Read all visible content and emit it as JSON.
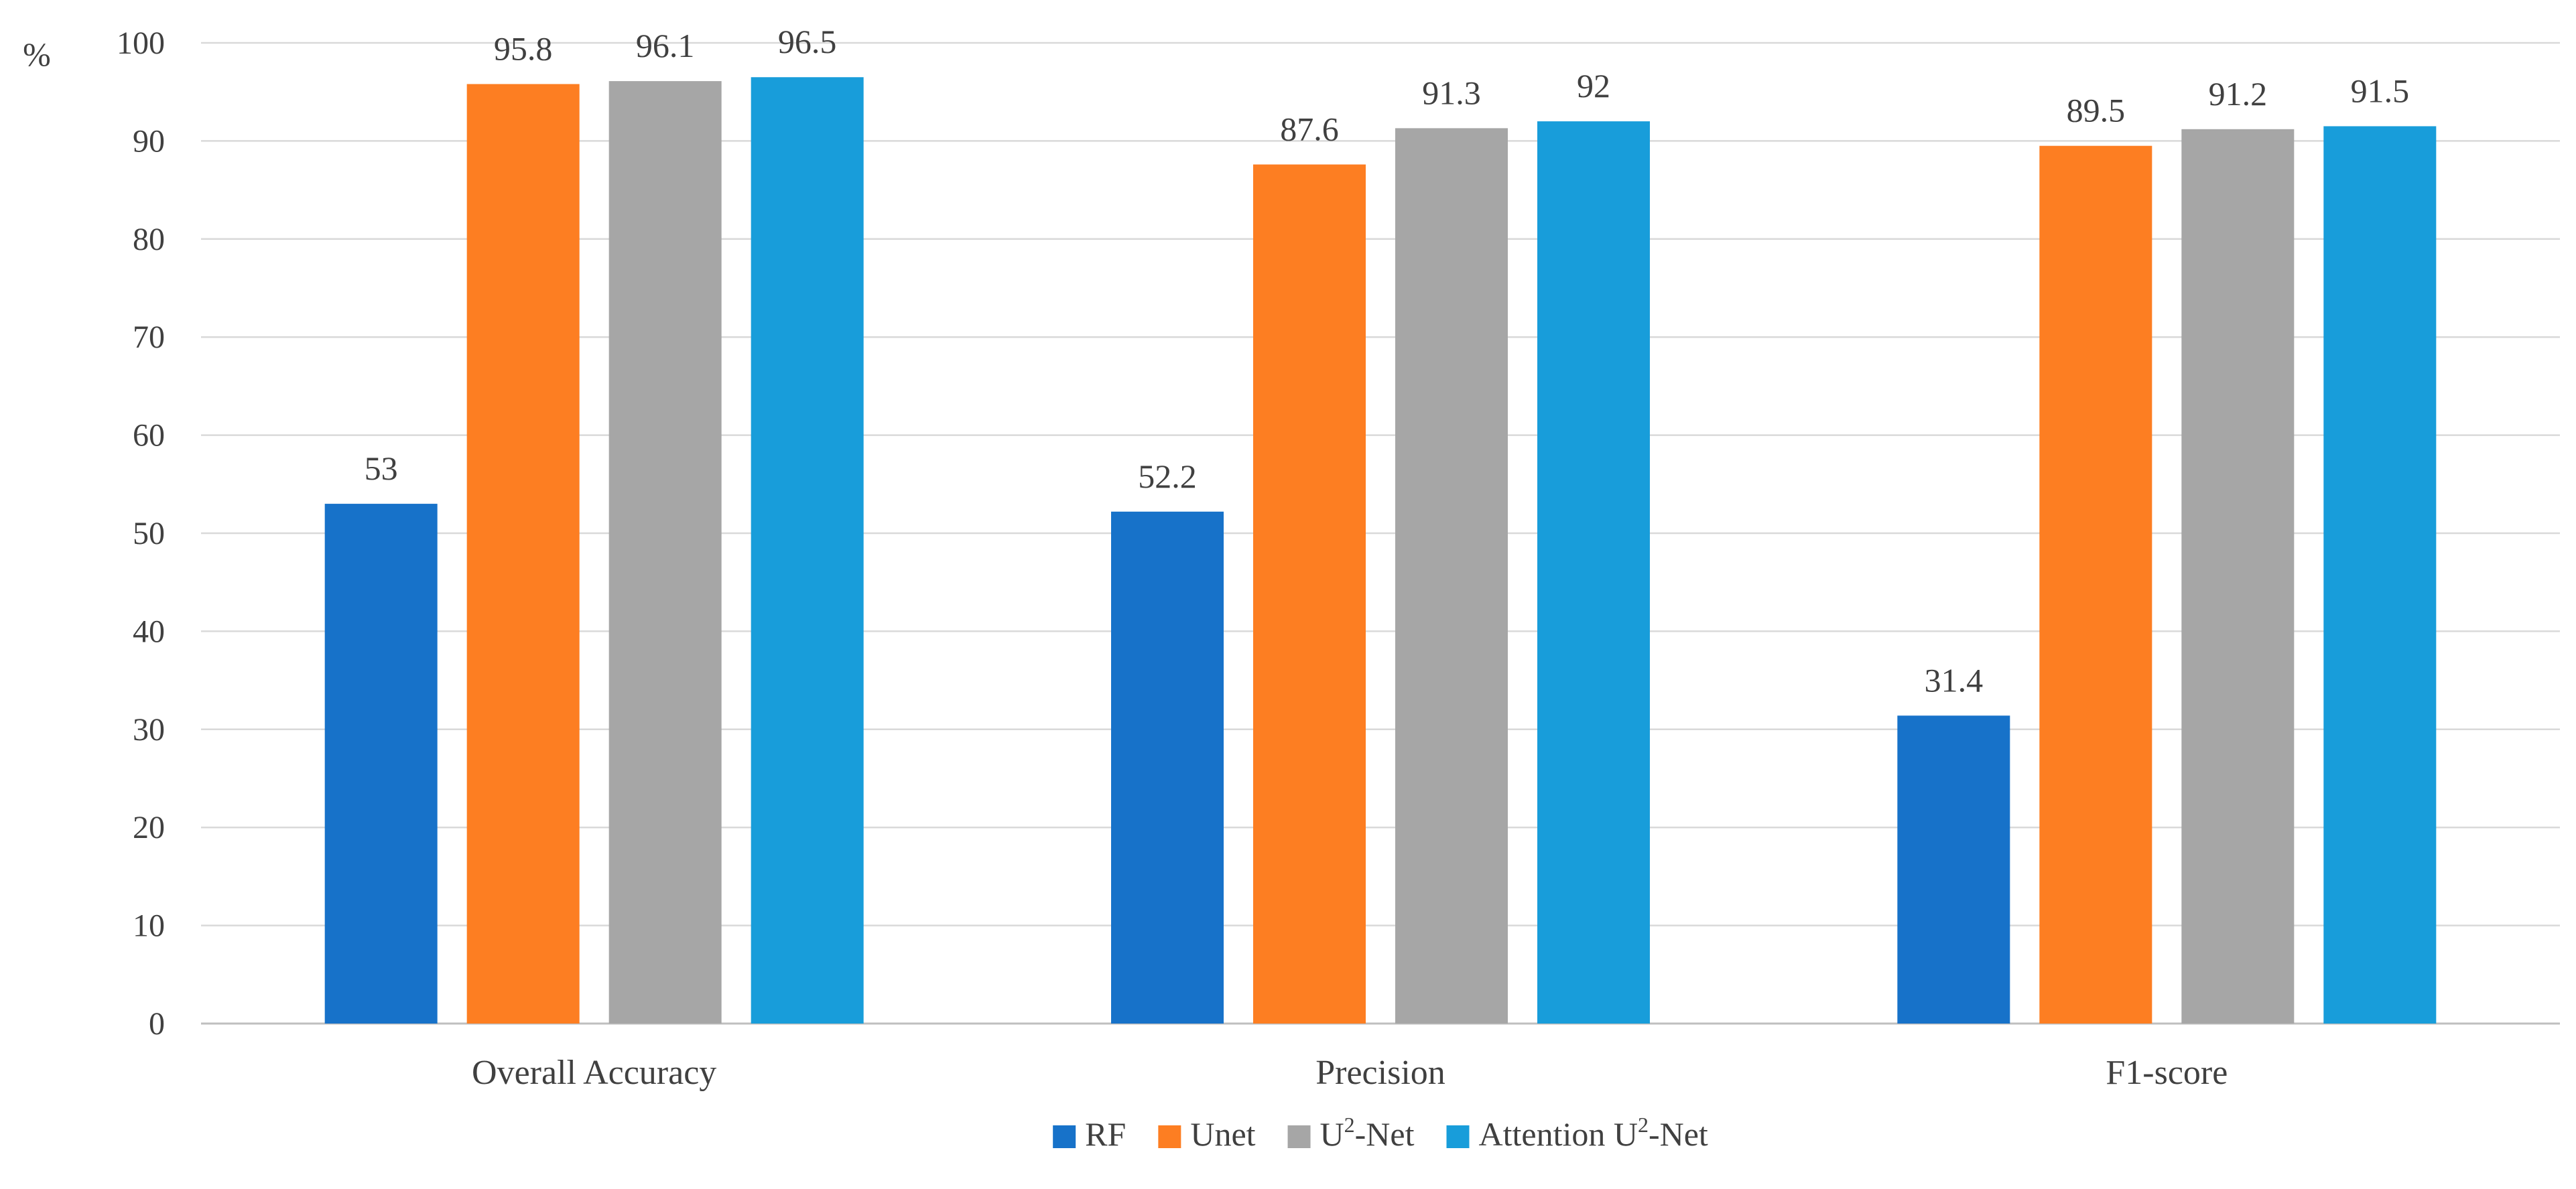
{
  "chart_data": {
    "type": "bar",
    "title": "",
    "xlabel": "",
    "ylabel": "%",
    "ylim": [
      0,
      100
    ],
    "yticks": [
      0,
      10,
      20,
      30,
      40,
      50,
      60,
      70,
      80,
      90,
      100
    ],
    "grid": true,
    "legend_position": "bottom-center",
    "categories": [
      "Overall Accuracy",
      "Precision",
      "F1-score"
    ],
    "series": [
      {
        "name": "RF",
        "name_base": "RF",
        "name_sup": "",
        "name_tail": "",
        "color": "#1772C9",
        "values": [
          53,
          52.2,
          31.4
        ]
      },
      {
        "name": "Unet",
        "name_base": "Unet",
        "name_sup": "",
        "name_tail": "",
        "color": "#FD7E22",
        "values": [
          95.8,
          87.6,
          89.5
        ]
      },
      {
        "name": "U2-Net",
        "name_base": "U",
        "name_sup": "2",
        "name_tail": "-Net",
        "color": "#A6A6A6",
        "values": [
          96.1,
          91.3,
          91.2
        ]
      },
      {
        "name": "Attention U2-Net",
        "name_base": "Attention U",
        "name_sup": "2",
        "name_tail": "-Net",
        "color": "#189DDA",
        "values": [
          96.5,
          92,
          91.5
        ]
      }
    ],
    "data_labels": [
      [
        "53",
        "52.2",
        "31.4"
      ],
      [
        "95.8",
        "87.6",
        "89.5"
      ],
      [
        "96.1",
        "91.3",
        "91.2"
      ],
      [
        "96.5",
        "92",
        "91.5"
      ]
    ]
  }
}
